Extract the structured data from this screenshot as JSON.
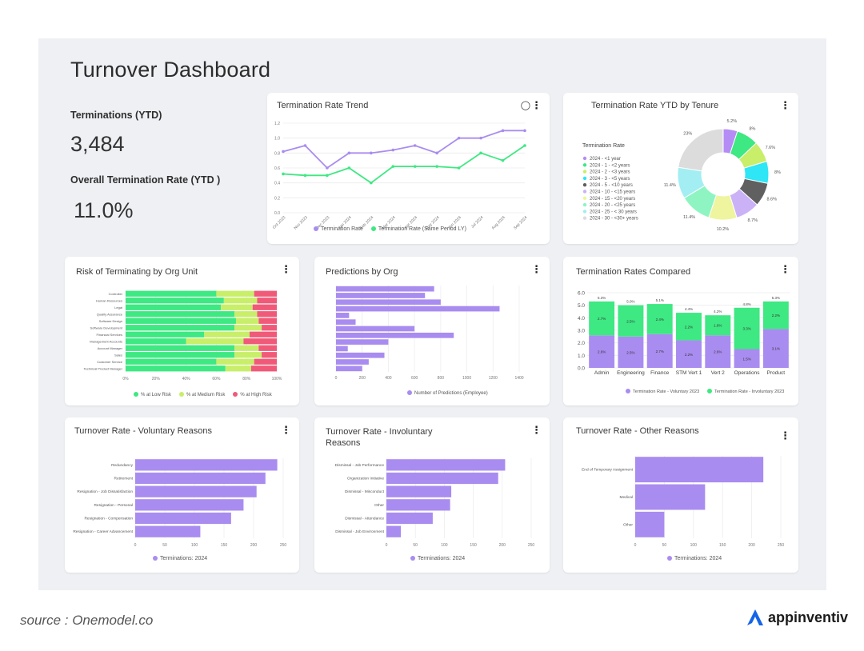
{
  "page": {
    "title": "Turnover Dashboard"
  },
  "kpis": {
    "terminations_label": "Terminations  (YTD)",
    "terminations_value": "3,484",
    "rate_label": "Overall Termination Rate (YTD )",
    "rate_value": "11.0%"
  },
  "footer": {
    "source": "source : Onemodel.co",
    "brand": "appinventiv"
  },
  "colors": {
    "purple": "#a98cf0",
    "green": "#3ee882",
    "lime": "#c8ee6a",
    "red": "#f05a78"
  },
  "chart_data": [
    {
      "id": "trend",
      "type": "line",
      "title": "Termination Rate Trend",
      "x": [
        "Oct 2023",
        "Nov 2023",
        "Dec 2023",
        "Jan 2024",
        "Feb 2024",
        "Mar 2024",
        "Apr 2024",
        "May 2024",
        "Jun 2024",
        "Jul 2024",
        "Aug 2024",
        "Sep 2024"
      ],
      "yticks": [
        "0.0",
        "0.2",
        "0.4",
        "0.6",
        "0.8",
        "1.0",
        "1.2"
      ],
      "ylim": [
        0,
        1.2
      ],
      "series": [
        {
          "name": "Termination Rate",
          "color": "#a98cf0",
          "values": [
            0.82,
            0.9,
            0.6,
            0.8,
            0.8,
            0.84,
            0.9,
            0.8,
            1.0,
            1.0,
            1.1,
            1.1
          ]
        },
        {
          "name": "Termination Rate (Same Period LY)",
          "color": "#3ee882",
          "values": [
            0.52,
            0.5,
            0.5,
            0.6,
            0.4,
            0.62,
            0.62,
            0.62,
            0.6,
            0.8,
            0.7,
            0.9
          ]
        }
      ]
    },
    {
      "id": "tenure",
      "type": "pie",
      "title": "Termination Rate YTD by Tenure",
      "legend_title": "Termination Rate",
      "labels": [
        "2024 - <1 year",
        "2024 - 1 - <2 years",
        "2024 - 2 - <3 years",
        "2024 - 3 - <5 years",
        "2024 - 5 - <10 years",
        "2024 - 10 - <15 years",
        "2024 - 15 - <20 years",
        "2024 - 20 - <25 years",
        "2024 - 25 - < 30 years",
        "2024 - 30 - <30+ years"
      ],
      "values": [
        5.2,
        8,
        7.6,
        8,
        8.6,
        8.7,
        10.2,
        11.4,
        11.4,
        23
      ],
      "display": [
        "5.2%",
        "8%",
        "7.6%",
        "8%",
        "8.6%",
        "8.7%",
        "10.2%",
        "11.4%",
        "11.4%",
        "23%"
      ],
      "colors": [
        "#b58cf5",
        "#3ee882",
        "#c8ee6a",
        "#2ee6f5",
        "#606060",
        "#cbb2f7",
        "#eef59e",
        "#8ef5c2",
        "#a2eef2",
        "#dcdcdc"
      ]
    },
    {
      "id": "risk",
      "type": "bar",
      "title": "Risk of Terminating by Org Unit",
      "categories": [
        "Controller",
        "Human Resources",
        "Legal",
        "Quality Assurance",
        "Software Design",
        "Software Development",
        "Financial Services",
        "Management Accounts",
        "Account Manager",
        "Sales",
        "Customer Service",
        "Technical Product Manager"
      ],
      "xticks": [
        "0%",
        "20%",
        "40%",
        "60%",
        "80%",
        "100%"
      ],
      "series": [
        {
          "name": "% at Low Risk",
          "color": "#3ee882",
          "values": [
            60,
            65,
            63,
            72,
            73,
            72,
            52,
            40,
            72,
            72,
            60,
            66
          ]
        },
        {
          "name": "% at Medium Risk",
          "color": "#c8ee6a",
          "values": [
            25,
            22,
            21,
            15,
            15,
            18,
            30,
            38,
            16,
            18,
            25,
            17
          ]
        },
        {
          "name": "% at High Risk",
          "color": "#f05a78",
          "values": [
            15,
            13,
            16,
            13,
            12,
            10,
            18,
            22,
            12,
            10,
            15,
            17
          ]
        }
      ]
    },
    {
      "id": "predictions",
      "type": "bar",
      "title": "Predictions by Org",
      "values": [
        750,
        680,
        800,
        1250,
        100,
        150,
        600,
        900,
        400,
        90,
        370,
        250,
        200
      ],
      "xticks": [
        "0",
        "200",
        "400",
        "600",
        "800",
        "1000",
        "1200",
        "1400"
      ],
      "xlim": [
        0,
        1400
      ],
      "series_name": "Number of Predictions (Employee)"
    },
    {
      "id": "compared",
      "type": "bar",
      "title": "Termination Rates Compared",
      "categories": [
        "Admin",
        "Engineering",
        "Finance",
        "STM Vert 1",
        "Vert 2",
        "Operations",
        "Product"
      ],
      "yticks": [
        "0.0",
        "1.0",
        "2.0",
        "3.0",
        "4.0",
        "5.0",
        "6.0"
      ],
      "ylim": [
        0,
        6
      ],
      "totals": [
        "5.3%",
        "5.0%",
        "5.1%",
        "4.4%",
        "4.2%",
        "4.8%",
        "5.3%"
      ],
      "series": [
        {
          "name": "Termination Rate - Voluntary 2023",
          "color": "#a98cf0",
          "values": [
            2.6,
            2.5,
            2.7,
            2.2,
            2.6,
            1.5,
            3.1
          ],
          "labels": [
            "2.6%",
            "2.5%",
            "2.7%",
            "2.2%",
            "2.6%",
            "1.5%",
            "3.1%"
          ]
        },
        {
          "name": "Termination Rate - Involuntary 2023",
          "color": "#3ee882",
          "values": [
            2.7,
            2.5,
            2.4,
            2.2,
            1.6,
            3.3,
            2.2
          ],
          "labels": [
            "2.7%",
            "2.5%",
            "2.4%",
            "2.2%",
            "1.6%",
            "3.3%",
            "2.2%"
          ]
        }
      ]
    },
    {
      "id": "voluntary",
      "type": "bar",
      "title": "Turnover Rate - Voluntary Reasons",
      "categories": [
        "Redundancy",
        "Retirement",
        "Resignation - Job Dissatisfaction",
        "Resignation - Personal",
        "Resignation - Compensation",
        "Resignation - Career Advancement"
      ],
      "values": [
        240,
        220,
        205,
        183,
        162,
        110
      ],
      "xticks": [
        "0",
        "50",
        "100",
        "150",
        "200",
        "250"
      ],
      "xlim": [
        0,
        250
      ],
      "series_name": "Terminations: 2024"
    },
    {
      "id": "involuntary",
      "type": "bar",
      "title": "Turnover Rate - Involuntary Reasons",
      "categories": [
        "Dismissal - Job Performance",
        "Organization Initiative",
        "Dismissal - Misconduct",
        "Other",
        "Dismissal - Attendance",
        "Dismissal - Job Environment"
      ],
      "values": [
        205,
        193,
        112,
        110,
        80,
        25
      ],
      "xticks": [
        "0",
        "50",
        "100",
        "150",
        "200",
        "250"
      ],
      "xlim": [
        0,
        250
      ],
      "series_name": "Terminations: 2024"
    },
    {
      "id": "other",
      "type": "bar",
      "title": "Turnover Rate - Other Reasons",
      "categories": [
        "End of Temporary Assignment",
        "Medical",
        "Other"
      ],
      "values": [
        220,
        120,
        50
      ],
      "xticks": [
        "0",
        "50",
        "100",
        "150",
        "200",
        "250"
      ],
      "xlim": [
        0,
        250
      ],
      "series_name": "Terminations: 2024"
    }
  ]
}
